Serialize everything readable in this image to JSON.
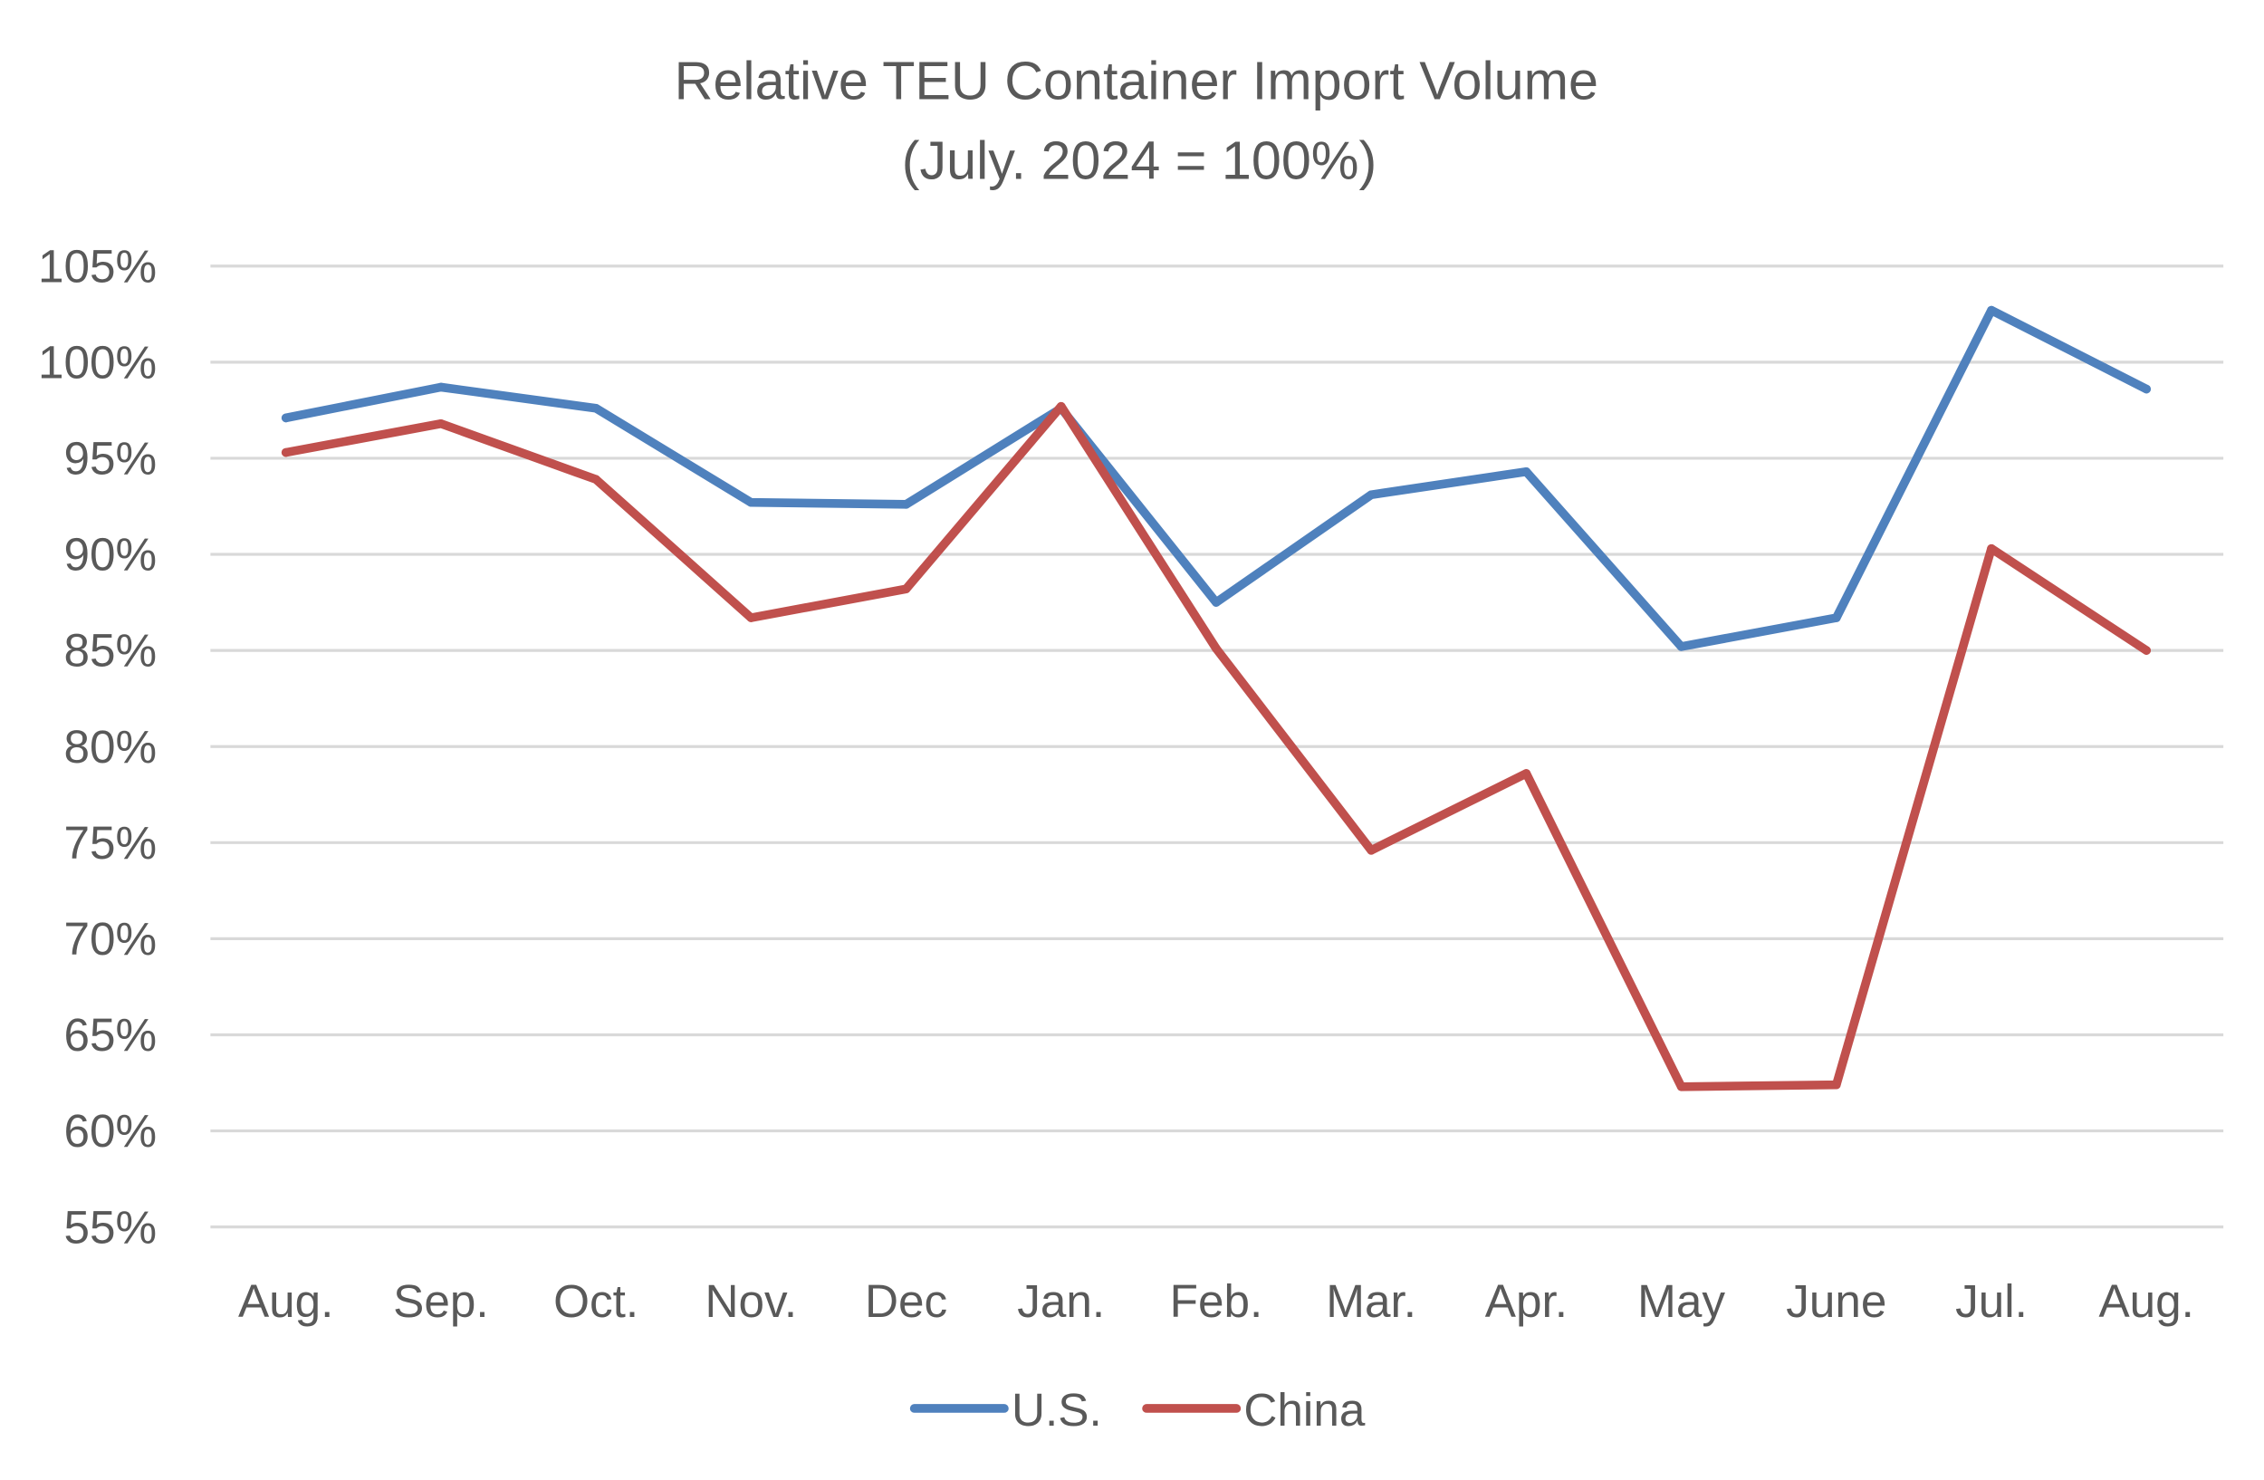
{
  "chart_data": {
    "type": "line",
    "title": "Relative TEU Container Import  Volume",
    "subtitle": "(July. 2024 = 100%)",
    "xlabel": "",
    "ylabel": "",
    "categories": [
      "Aug.",
      "Sep.",
      "Oct.",
      "Nov.",
      "Dec",
      "Jan.",
      "Feb.",
      "Mar.",
      "Apr.",
      "May",
      "June",
      "Jul.",
      "Aug."
    ],
    "ylim": [
      55,
      105
    ],
    "ystep": 5,
    "ytick_labels": [
      "55%",
      "60%",
      "65%",
      "70%",
      "75%",
      "80%",
      "85%",
      "90%",
      "95%",
      "100%",
      "105%"
    ],
    "grid": true,
    "legend_position": "bottom",
    "series": [
      {
        "name": "U.S.",
        "color": "#4f81bd",
        "values": [
          97.1,
          98.7,
          97.6,
          92.7,
          92.6,
          97.6,
          87.5,
          93.1,
          94.3,
          85.2,
          86.7,
          102.7,
          98.6
        ]
      },
      {
        "name": "China",
        "color": "#c0504d",
        "values": [
          95.3,
          96.8,
          93.9,
          86.7,
          88.2,
          97.7,
          85.1,
          74.6,
          78.6,
          62.3,
          62.4,
          90.3,
          85.0
        ]
      }
    ]
  }
}
